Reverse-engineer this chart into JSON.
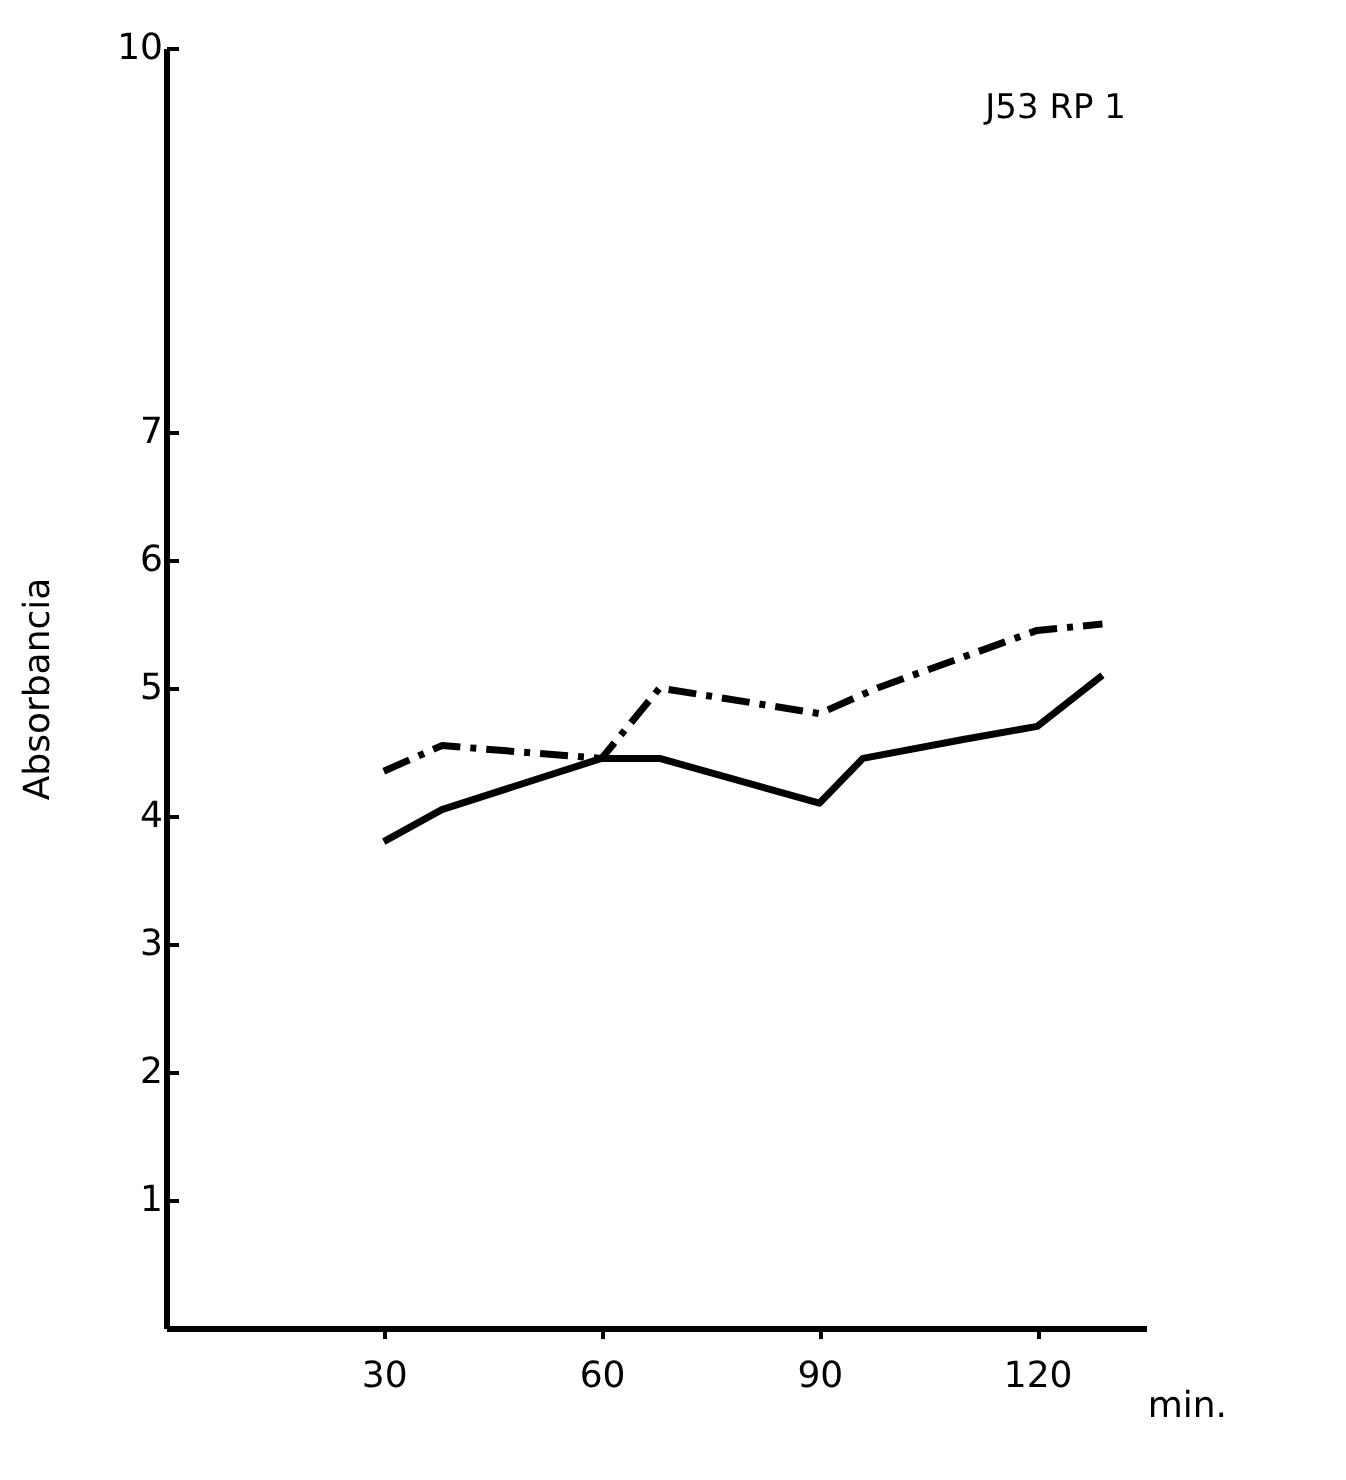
{
  "chart_data": {
    "type": "line",
    "ylabel": "Absorbancia",
    "xlabel": "min.",
    "annotations": [
      "J53 RP 1"
    ],
    "xlim": [
      0,
      135
    ],
    "xticks": [
      30,
      60,
      90,
      120
    ],
    "ylim": [
      0,
      10
    ],
    "yticks": [
      1,
      2,
      3,
      4,
      5,
      6,
      7,
      10
    ],
    "series": [
      {
        "color": "#000000",
        "line_style": "solid",
        "x": [
          30,
          38,
          60,
          68,
          90,
          96,
          110,
          120,
          129
        ],
        "values": [
          3.8,
          4.05,
          4.45,
          4.45,
          4.1,
          4.45,
          4.6,
          4.7,
          5.1
        ]
      },
      {
        "color": "#000000",
        "line_style": "dashed",
        "x": [
          30,
          38,
          60,
          68,
          90,
          98,
          120,
          129
        ],
        "values": [
          4.35,
          4.55,
          4.45,
          5.0,
          4.8,
          5.0,
          5.45,
          5.5
        ]
      }
    ]
  }
}
